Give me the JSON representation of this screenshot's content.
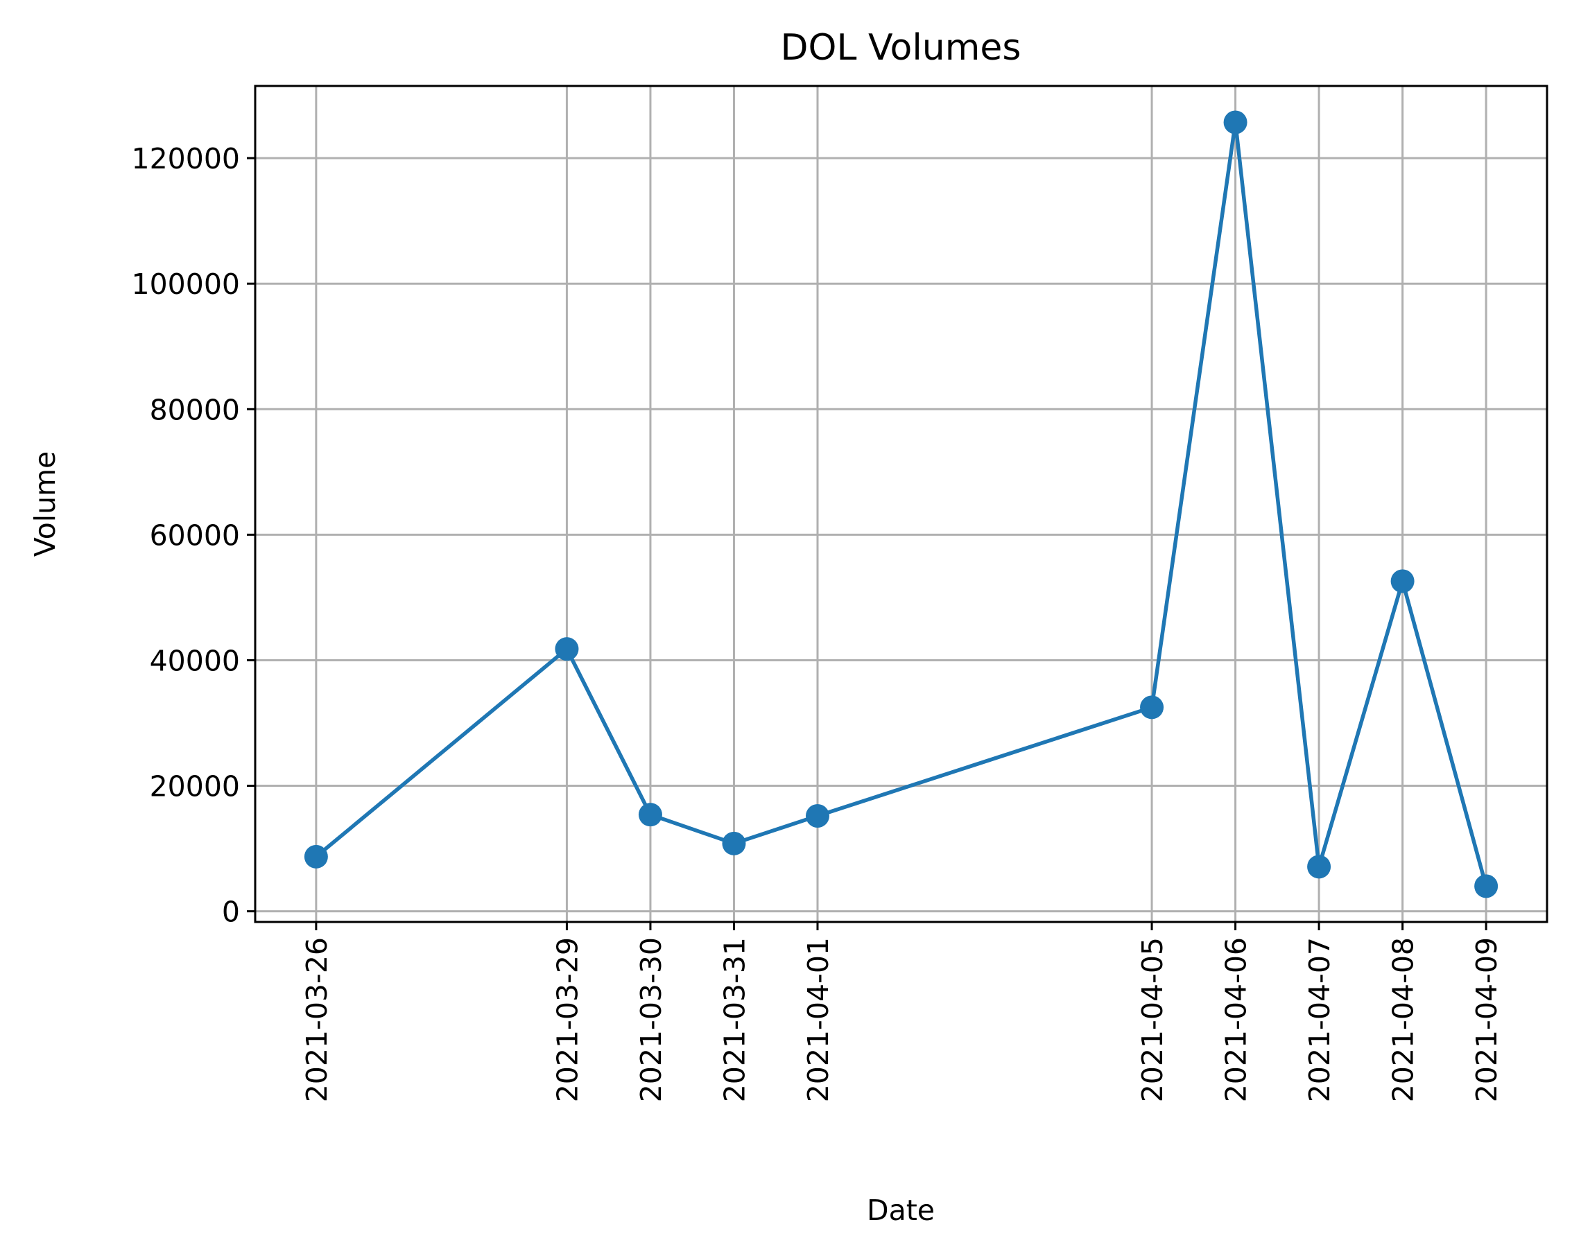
{
  "chart_data": {
    "type": "line",
    "title": "DOL Volumes",
    "xlabel": "Date",
    "ylabel": "Volume",
    "x": [
      "2021-03-26",
      "2021-03-29",
      "2021-03-30",
      "2021-03-31",
      "2021-04-01",
      "2021-04-05",
      "2021-04-06",
      "2021-04-07",
      "2021-04-08",
      "2021-04-09"
    ],
    "series": [
      {
        "values": [
          8700,
          41800,
          15400,
          10800,
          15200,
          32500,
          125700,
          7100,
          52600,
          4000
        ],
        "color": "#1f77b4",
        "marker": "circle"
      }
    ],
    "xlim": [
      "2021-03-25T06:30",
      "2021-04-09T17:30"
    ],
    "ylim": [
      -1700,
      131500
    ],
    "yticks": [
      0,
      20000,
      40000,
      60000,
      80000,
      100000,
      120000
    ],
    "xtick_rotation": 90,
    "grid": true,
    "legend": "none"
  }
}
